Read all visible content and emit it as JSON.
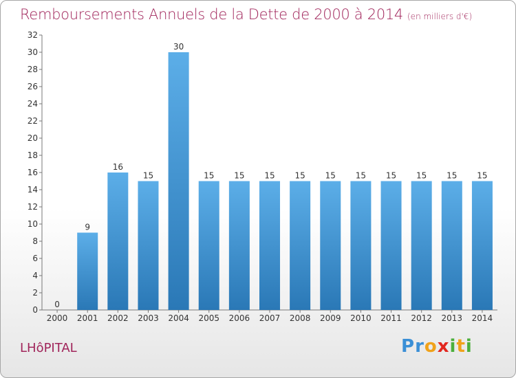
{
  "chart_data": {
    "type": "bar",
    "title": "Remboursements Annuels de la Dette de 2000 à 2014",
    "subtitle": "(en milliers d'€)",
    "categories": [
      "2000",
      "2001",
      "2002",
      "2003",
      "2004",
      "2005",
      "2006",
      "2007",
      "2008",
      "2009",
      "2010",
      "2011",
      "2012",
      "2013",
      "2014"
    ],
    "values": [
      0,
      9,
      16,
      15,
      30,
      15,
      15,
      15,
      15,
      15,
      15,
      15,
      15,
      15,
      15
    ],
    "data_labels": [
      "0",
      "9",
      "16",
      "15",
      "30",
      "15",
      "15",
      "15",
      "15",
      "15",
      "15",
      "15",
      "15",
      "15",
      "15"
    ],
    "ylim": [
      0,
      32
    ],
    "yticks": [
      0,
      2,
      4,
      6,
      8,
      10,
      12,
      14,
      16,
      18,
      20,
      22,
      24,
      26,
      28,
      30,
      32
    ],
    "xlabel": "",
    "ylabel": "",
    "grid": false,
    "legend": "none",
    "colors": {
      "bar_light": "#5caee8",
      "bar_dark": "#2a78b6",
      "title": "#a0245a",
      "axis": "#777777"
    }
  },
  "footer": {
    "commune": "LHôPITAL"
  },
  "logo": {
    "letters": [
      {
        "ch": "P",
        "color": "#3a8fd6"
      },
      {
        "ch": "r",
        "color": "#3a8fd6"
      },
      {
        "ch": "o",
        "color": "#f0a21a"
      },
      {
        "ch": "x",
        "color": "#e2271f"
      },
      {
        "ch": "i",
        "color": "#4caf3c"
      },
      {
        "ch": "t",
        "color": "#f0a21a"
      },
      {
        "ch": "i",
        "color": "#4caf3c"
      }
    ]
  }
}
